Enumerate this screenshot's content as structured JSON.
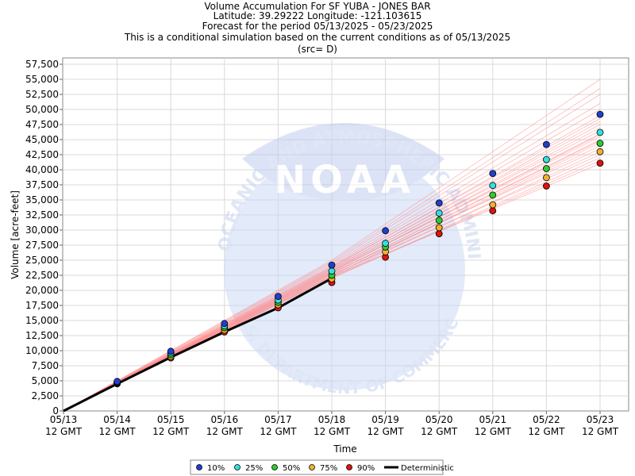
{
  "titles": [
    "Volume Accumulation For SF YUBA - JONES BAR",
    "Latitude: 39.29222 Longitude: -121.103615",
    "Forecast for the period 05/13/2025 - 05/23/2025",
    "This is a conditional simulation based on the current conditions as of 05/13/2025",
    "(src= D)"
  ],
  "watermark": {
    "logo_text": "NOAA",
    "ring_text": "NATIONAL OCEANIC AND ATMOSPHERIC ADMINISTRATION",
    "bottom_text": "U.S. DEPARTMENT OF COMMERCE"
  },
  "chart_data": {
    "type": "scatter",
    "xlabel": "Time",
    "ylabel": "Volume [acre-feet]",
    "ylim": [
      0,
      57500
    ],
    "yticks": [
      0,
      2500,
      5000,
      7500,
      10000,
      12500,
      15000,
      17500,
      20000,
      22500,
      25000,
      27500,
      30000,
      32500,
      35000,
      37500,
      40000,
      42500,
      45000,
      47500,
      50000,
      52500,
      55000,
      57500
    ],
    "x": [
      "05/13",
      "05/14",
      "05/15",
      "05/16",
      "05/17",
      "05/18",
      "05/19",
      "05/20",
      "05/21",
      "05/22",
      "05/23"
    ],
    "x_sub": "12 GMT",
    "grid": true,
    "legend_position": "bottom",
    "series": [
      {
        "name": "10%",
        "color": "#1f3fcf",
        "x_start": 1,
        "values": [
          4900,
          9900,
          14500,
          19000,
          24200,
          29900,
          34500,
          39400,
          44200,
          49200
        ]
      },
      {
        "name": "25%",
        "color": "#33e0e0",
        "x_start": 1,
        "values": [
          4800,
          9600,
          14100,
          18400,
          23200,
          27800,
          32800,
          37400,
          41700,
          46200
        ]
      },
      {
        "name": "50%",
        "color": "#2ecc2e",
        "x_start": 1,
        "values": [
          4700,
          9300,
          13800,
          18000,
          22500,
          27200,
          31600,
          35800,
          40200,
          44400
        ]
      },
      {
        "name": "75%",
        "color": "#f0b030",
        "x_start": 1,
        "values": [
          4600,
          9000,
          13400,
          17600,
          21900,
          26400,
          30400,
          34200,
          38700,
          43000
        ]
      },
      {
        "name": "90%",
        "color": "#dd1111",
        "x_start": 1,
        "values": [
          4500,
          8800,
          13100,
          17100,
          21300,
          25500,
          29400,
          33200,
          37300,
          41100
        ]
      },
      {
        "name": "Deterministic",
        "color": "#000000",
        "x": [
          0,
          1,
          2,
          3,
          4,
          5
        ],
        "values": [
          0,
          4500,
          8900,
          13100,
          17100,
          22000
        ]
      }
    ],
    "ensemble": {
      "color": "#ff8080",
      "traces": [
        {
          "slope": 4650,
          "end": 47000
        },
        {
          "slope": 4700,
          "end": 48000
        },
        {
          "slope": 4600,
          "end": 46000
        },
        {
          "slope": 4550,
          "end": 45000
        },
        {
          "slope": 4500,
          "end": 44000
        },
        {
          "slope": 4450,
          "end": 43000
        },
        {
          "slope": 4400,
          "end": 42000
        },
        {
          "slope": 4420,
          "end": 41500
        },
        {
          "slope": 4480,
          "end": 44500
        },
        {
          "slope": 4620,
          "end": 45500
        },
        {
          "slope": 4750,
          "end": 49000
        },
        {
          "slope": 4800,
          "end": 50000
        },
        {
          "slope": 4900,
          "end": 52500
        },
        {
          "slope": 5000,
          "end": 55000
        },
        {
          "slope": 4850,
          "end": 51000
        },
        {
          "slope": 4580,
          "end": 43500
        },
        {
          "slope": 4680,
          "end": 46500
        },
        {
          "slope": 4520,
          "end": 42500
        },
        {
          "slope": 4720,
          "end": 47500
        },
        {
          "slope": 4560,
          "end": 44800
        },
        {
          "slope": 4640,
          "end": 45800
        },
        {
          "slope": 4460,
          "end": 41000
        },
        {
          "slope": 4950,
          "end": 53500
        },
        {
          "slope": 4780,
          "end": 48500
        }
      ]
    }
  }
}
